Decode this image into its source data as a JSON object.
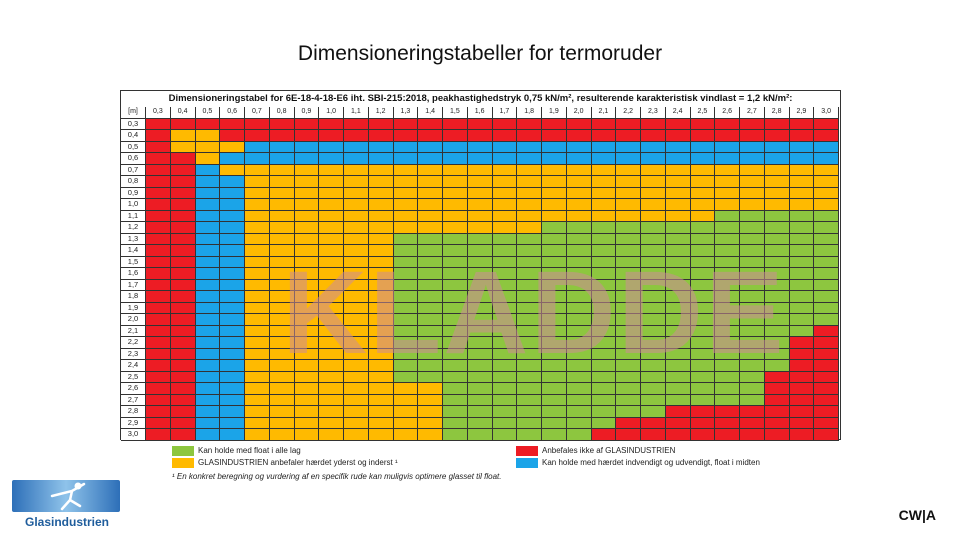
{
  "slide": {
    "title": "Dimensioneringstabeller for termoruder",
    "watermark": "KLADDE",
    "brand_mark": "CW|A",
    "logo_text": "Glasindustrien"
  },
  "table": {
    "header": "Dimensioneringstabel for 6E-18-4-18-E6 iht. SBI-215:2018, peakhastighedstryk 0,75 kN/m², resulterende karakteristisk vindlast = 1,2 kN/m²:",
    "corner_label": "[m]",
    "columns": [
      "0,3",
      "0,4",
      "0,5",
      "0,6",
      "0,7",
      "0,8",
      "0,9",
      "1,0",
      "1,1",
      "1,2",
      "1,3",
      "1,4",
      "1,5",
      "1,6",
      "1,7",
      "1,8",
      "1,9",
      "2,0",
      "2,1",
      "2,2",
      "2,3",
      "2,4",
      "2,5",
      "2,6",
      "2,7",
      "2,8",
      "2,9",
      "3,0"
    ],
    "rows": [
      "0,3",
      "0,4",
      "0,5",
      "0,6",
      "0,7",
      "0,8",
      "0,9",
      "1,0",
      "1,1",
      "1,2",
      "1,3",
      "1,4",
      "1,5",
      "1,6",
      "1,7",
      "1,8",
      "1,9",
      "2,0",
      "2,1",
      "2,2",
      "2,3",
      "2,4",
      "2,5",
      "2,6",
      "2,7",
      "2,8",
      "2,9",
      "3,0"
    ],
    "colors": {
      "G": "#8dc63f",
      "Y": "#ffba00",
      "R": "#ed1c24",
      "B": "#1ba4e8"
    }
  },
  "legend": {
    "green": "Kan holde med float i alle lag",
    "yellow": "GLASINDUSTRIEN anbefaler hærdet yderst og inderst ¹",
    "red": "Anbefales ikke af GLASINDUSTRIEN",
    "blue": "Kan holde med hærdet indvendigt og udvendigt, float i midten",
    "footnote": "¹ En konkret beregning og vurdering af en specifik rude kan muligvis optimere glasset til float."
  }
}
